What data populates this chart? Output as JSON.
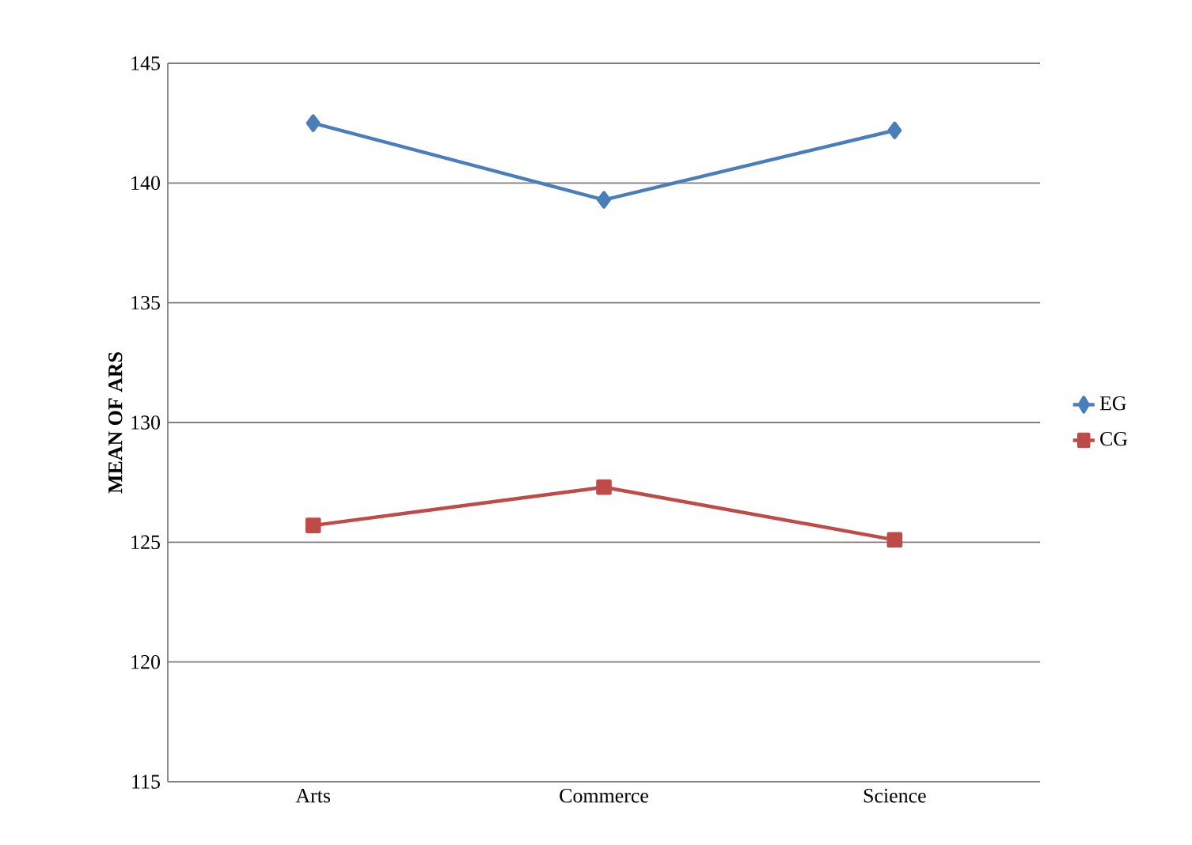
{
  "chart_data": {
    "type": "line",
    "ylabel": "MEAN OF ARS",
    "categories": [
      "Arts",
      "Commerce",
      "Science"
    ],
    "series": [
      {
        "name": "EG",
        "color": "#4a7ebb",
        "marker": "diamond",
        "values": [
          142.5,
          139.3,
          142.2
        ]
      },
      {
        "name": "CG",
        "color": "#be4b48",
        "marker": "square",
        "values": [
          125.7,
          127.3,
          125.1
        ]
      }
    ],
    "ylim": [
      115,
      145
    ],
    "yticks": [
      115,
      120,
      125,
      130,
      135,
      140,
      145
    ],
    "grid": "y",
    "legend": "right"
  }
}
